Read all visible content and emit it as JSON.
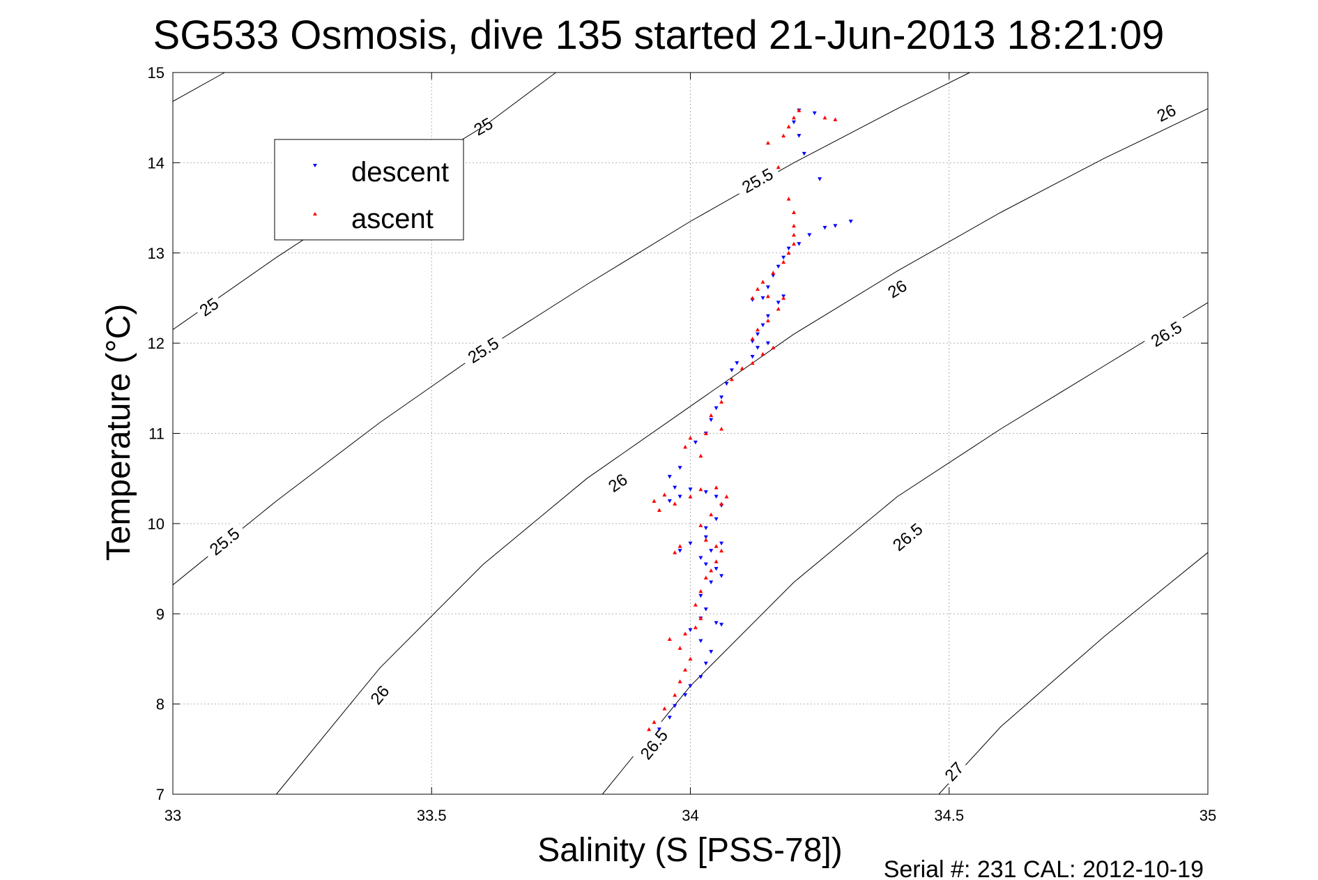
{
  "chart_data": {
    "type": "scatter",
    "title": "SG533 Osmosis, dive 135 started 21-Jun-2013 18:21:09",
    "xlabel": "Salinity (S [PSS-78])",
    "ylabel": "Temperature (°C)",
    "xlim": [
      33,
      35
    ],
    "ylim": [
      7,
      15
    ],
    "xticks": [
      "33",
      "33.5",
      "34",
      "34.5",
      "35"
    ],
    "yticks": [
      "7",
      "8",
      "9",
      "10",
      "11",
      "12",
      "13",
      "14",
      "15"
    ],
    "grid": true,
    "legend_position": "top-left",
    "footer": "Serial #: 231  CAL: 2012-10-19",
    "colors": {
      "descent": "#0000ff",
      "ascent": "#ff0000",
      "contour": "#000000"
    },
    "series": [
      {
        "name": "descent",
        "marker": "triangle-down",
        "points": [
          [
            33.94,
            7.72
          ],
          [
            33.96,
            7.85
          ],
          [
            33.97,
            7.98
          ],
          [
            33.99,
            8.1
          ],
          [
            34.0,
            8.2
          ],
          [
            34.02,
            8.3
          ],
          [
            34.03,
            8.45
          ],
          [
            34.04,
            8.58
          ],
          [
            34.02,
            8.7
          ],
          [
            34.0,
            8.82
          ],
          [
            34.02,
            8.95
          ],
          [
            34.05,
            8.9
          ],
          [
            34.06,
            8.88
          ],
          [
            34.03,
            9.05
          ],
          [
            34.02,
            9.2
          ],
          [
            34.04,
            9.35
          ],
          [
            34.06,
            9.42
          ],
          [
            34.05,
            9.5
          ],
          [
            34.03,
            9.55
          ],
          [
            34.02,
            9.62
          ],
          [
            34.04,
            9.7
          ],
          [
            34.06,
            9.78
          ],
          [
            34.03,
            9.85
          ],
          [
            34.0,
            9.78
          ],
          [
            33.98,
            9.7
          ],
          [
            34.03,
            9.95
          ],
          [
            34.05,
            10.05
          ],
          [
            34.06,
            10.2
          ],
          [
            34.05,
            10.3
          ],
          [
            34.03,
            10.35
          ],
          [
            34.0,
            10.38
          ],
          [
            33.98,
            10.3
          ],
          [
            33.96,
            10.25
          ],
          [
            33.97,
            10.4
          ],
          [
            33.96,
            10.52
          ],
          [
            33.98,
            10.62
          ],
          [
            34.01,
            10.9
          ],
          [
            34.03,
            11.0
          ],
          [
            34.04,
            11.15
          ],
          [
            34.05,
            11.28
          ],
          [
            34.06,
            11.4
          ],
          [
            34.07,
            11.55
          ],
          [
            34.08,
            11.7
          ],
          [
            34.09,
            11.78
          ],
          [
            34.12,
            11.85
          ],
          [
            34.13,
            11.95
          ],
          [
            34.15,
            12.0
          ],
          [
            34.12,
            12.02
          ],
          [
            34.13,
            12.1
          ],
          [
            34.14,
            12.2
          ],
          [
            34.15,
            12.3
          ],
          [
            34.17,
            12.45
          ],
          [
            34.18,
            12.52
          ],
          [
            34.14,
            12.5
          ],
          [
            34.12,
            12.48
          ],
          [
            34.15,
            12.62
          ],
          [
            34.16,
            12.75
          ],
          [
            34.17,
            12.85
          ],
          [
            34.18,
            12.95
          ],
          [
            34.19,
            13.05
          ],
          [
            34.21,
            13.1
          ],
          [
            34.23,
            13.2
          ],
          [
            34.26,
            13.28
          ],
          [
            34.28,
            13.3
          ],
          [
            34.31,
            13.35
          ],
          [
            34.25,
            13.82
          ],
          [
            34.21,
            14.3
          ],
          [
            34.22,
            14.1
          ],
          [
            34.2,
            14.45
          ],
          [
            34.21,
            14.58
          ],
          [
            34.24,
            14.55
          ]
        ]
      },
      {
        "name": "ascent",
        "marker": "triangle-up",
        "points": [
          [
            33.92,
            7.72
          ],
          [
            33.93,
            7.8
          ],
          [
            33.95,
            7.95
          ],
          [
            33.97,
            8.1
          ],
          [
            33.98,
            8.25
          ],
          [
            33.99,
            8.38
          ],
          [
            34.0,
            8.5
          ],
          [
            33.98,
            8.62
          ],
          [
            33.96,
            8.72
          ],
          [
            33.99,
            8.78
          ],
          [
            34.01,
            8.85
          ],
          [
            34.02,
            8.95
          ],
          [
            34.01,
            9.1
          ],
          [
            34.02,
            9.25
          ],
          [
            34.03,
            9.4
          ],
          [
            34.04,
            9.48
          ],
          [
            34.05,
            9.58
          ],
          [
            34.06,
            9.7
          ],
          [
            34.05,
            9.75
          ],
          [
            34.03,
            9.82
          ],
          [
            33.98,
            9.75
          ],
          [
            33.97,
            9.68
          ],
          [
            34.02,
            9.98
          ],
          [
            34.04,
            10.1
          ],
          [
            34.06,
            10.22
          ],
          [
            34.07,
            10.3
          ],
          [
            34.05,
            10.4
          ],
          [
            34.02,
            10.38
          ],
          [
            34.0,
            10.3
          ],
          [
            33.97,
            10.22
          ],
          [
            33.94,
            10.15
          ],
          [
            33.93,
            10.25
          ],
          [
            33.95,
            10.32
          ],
          [
            34.02,
            10.75
          ],
          [
            33.99,
            10.85
          ],
          [
            34.0,
            10.95
          ],
          [
            34.03,
            11.0
          ],
          [
            34.06,
            11.05
          ],
          [
            34.04,
            11.2
          ],
          [
            34.06,
            11.35
          ],
          [
            34.08,
            11.6
          ],
          [
            34.1,
            11.72
          ],
          [
            34.12,
            11.78
          ],
          [
            34.14,
            11.88
          ],
          [
            34.16,
            11.95
          ],
          [
            34.12,
            12.05
          ],
          [
            34.13,
            12.15
          ],
          [
            34.15,
            12.25
          ],
          [
            34.17,
            12.38
          ],
          [
            34.18,
            12.5
          ],
          [
            34.15,
            12.52
          ],
          [
            34.12,
            12.5
          ],
          [
            34.13,
            12.6
          ],
          [
            34.14,
            12.68
          ],
          [
            34.16,
            12.78
          ],
          [
            34.18,
            12.9
          ],
          [
            34.19,
            13.0
          ],
          [
            34.2,
            13.1
          ],
          [
            34.2,
            13.2
          ],
          [
            34.2,
            13.3
          ],
          [
            34.2,
            13.45
          ],
          [
            34.19,
            13.6
          ],
          [
            34.17,
            13.95
          ],
          [
            34.15,
            14.22
          ],
          [
            34.18,
            14.3
          ],
          [
            34.19,
            14.4
          ],
          [
            34.2,
            14.5
          ],
          [
            34.21,
            14.58
          ],
          [
            34.26,
            14.5
          ],
          [
            34.28,
            14.48
          ]
        ]
      }
    ],
    "contours": [
      {
        "label": "25",
        "points": [
          [
            33.0,
            14.68
          ],
          [
            33.1,
            15.0
          ]
        ],
        "labels_at": [
          [
            33.6,
            14.4
          ]
        ]
      },
      {
        "label": "25",
        "points": [
          [
            33.0,
            12.15
          ],
          [
            33.2,
            12.95
          ],
          [
            33.4,
            13.7
          ],
          [
            33.6,
            14.4
          ],
          [
            33.74,
            15.0
          ]
        ],
        "labels_at": [
          [
            33.07,
            12.4
          ]
        ]
      },
      {
        "label": "25.5",
        "points": [
          [
            33.0,
            9.32
          ],
          [
            33.2,
            10.25
          ],
          [
            33.4,
            11.12
          ],
          [
            33.6,
            11.92
          ],
          [
            33.8,
            12.65
          ],
          [
            34.0,
            13.35
          ],
          [
            34.2,
            14.0
          ],
          [
            34.4,
            14.6
          ],
          [
            34.54,
            15.0
          ]
        ],
        "labels_at": [
          [
            33.1,
            9.8
          ],
          [
            33.6,
            11.92
          ],
          [
            34.13,
            13.8
          ]
        ]
      },
      {
        "label": "26",
        "points": [
          [
            33.2,
            7.0
          ],
          [
            33.4,
            8.4
          ],
          [
            33.6,
            9.55
          ],
          [
            33.8,
            10.5
          ],
          [
            34.0,
            11.3
          ],
          [
            34.2,
            12.1
          ],
          [
            34.4,
            12.8
          ],
          [
            34.6,
            13.45
          ],
          [
            34.8,
            14.05
          ],
          [
            35.0,
            14.6
          ]
        ],
        "labels_at": [
          [
            33.4,
            8.1
          ],
          [
            33.86,
            10.45
          ],
          [
            34.4,
            12.6
          ],
          [
            34.92,
            14.55
          ]
        ]
      },
      {
        "label": "26.5",
        "points": [
          [
            33.83,
            7.0
          ],
          [
            34.0,
            8.2
          ],
          [
            34.2,
            9.35
          ],
          [
            34.4,
            10.3
          ],
          [
            34.6,
            11.05
          ],
          [
            34.8,
            11.75
          ],
          [
            35.0,
            12.45
          ]
        ],
        "labels_at": [
          [
            33.93,
            7.55
          ],
          [
            34.42,
            9.85
          ],
          [
            34.92,
            12.1
          ]
        ]
      },
      {
        "label": "27",
        "points": [
          [
            34.48,
            7.0
          ],
          [
            34.6,
            7.75
          ],
          [
            34.8,
            8.75
          ],
          [
            35.0,
            9.68
          ]
        ],
        "labels_at": [
          [
            34.51,
            7.25
          ]
        ]
      }
    ]
  }
}
